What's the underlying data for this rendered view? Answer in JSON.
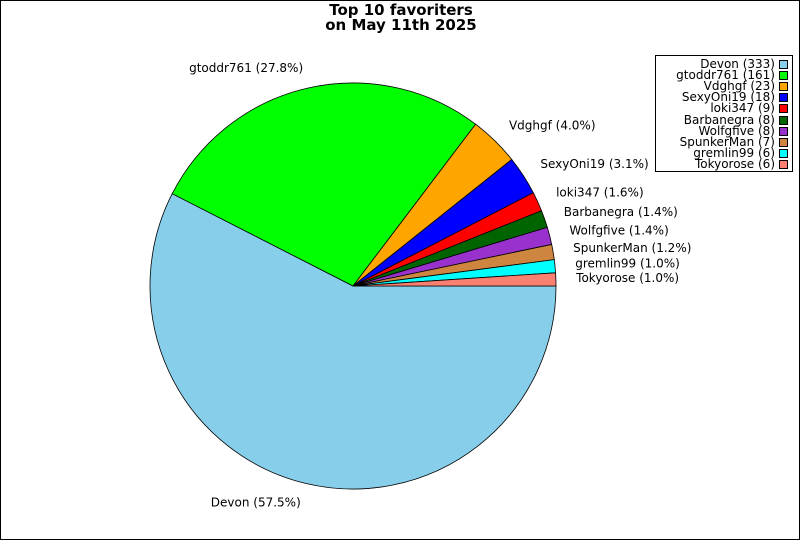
{
  "chart_data": {
    "type": "pie",
    "title": "Top 10 favoriters",
    "subtitle": "on May 11th 2025",
    "legend_position": "top-right",
    "slices": [
      {
        "name": "Devon",
        "value": 333,
        "percent": 57.5,
        "label": "Devon (57.5%)",
        "legend": "Devon (333)",
        "color": "#87ceeb"
      },
      {
        "name": "gtoddr761",
        "value": 161,
        "percent": 27.8,
        "label": "gtoddr761 (27.8%)",
        "legend": "gtoddr761 (161)",
        "color": "#00ff00"
      },
      {
        "name": "Vdghgf",
        "value": 23,
        "percent": 4.0,
        "label": "Vdghgf (4.0%)",
        "legend": "Vdghgf (23)",
        "color": "#ffa500"
      },
      {
        "name": "SexyOni19",
        "value": 18,
        "percent": 3.1,
        "label": "SexyOni19 (3.1%)",
        "legend": "SexyOni19 (18)",
        "color": "#0000ff"
      },
      {
        "name": "loki347",
        "value": 9,
        "percent": 1.6,
        "label": "loki347 (1.6%)",
        "legend": "loki347 (9)",
        "color": "#ff0000"
      },
      {
        "name": "Barbanegra",
        "value": 8,
        "percent": 1.4,
        "label": "Barbanegra (1.4%)",
        "legend": "Barbanegra (8)",
        "color": "#006400"
      },
      {
        "name": "Wolfgfive",
        "value": 8,
        "percent": 1.4,
        "label": "Wolfgfive (1.4%)",
        "legend": "Wolfgfive (8)",
        "color": "#9932cc"
      },
      {
        "name": "SpunkerMan",
        "value": 7,
        "percent": 1.2,
        "label": "SpunkerMan (1.2%)",
        "legend": "SpunkerMan (7)",
        "color": "#cd853f"
      },
      {
        "name": "gremlin99",
        "value": 6,
        "percent": 1.0,
        "label": "gremlin99 (1.0%)",
        "legend": "gremlin99 (6)",
        "color": "#00ffff"
      },
      {
        "name": "Tokyorose",
        "value": 6,
        "percent": 1.0,
        "label": "Tokyorose (1.0%)",
        "legend": "Tokyorose (6)",
        "color": "#fa8072"
      }
    ]
  }
}
